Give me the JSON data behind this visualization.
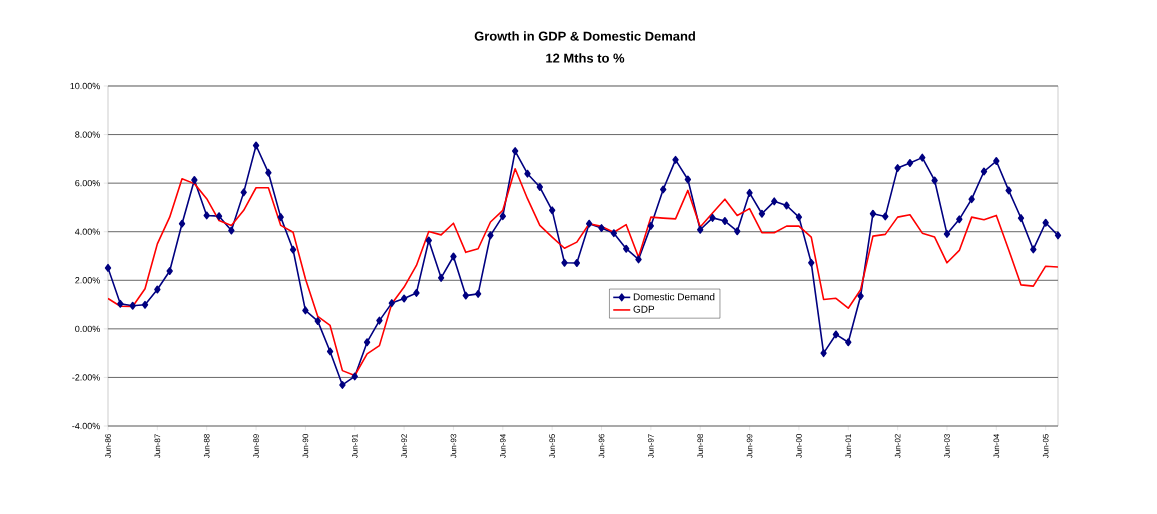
{
  "chart_data": {
    "type": "line",
    "title": "Growth in GDP & Domestic Demand",
    "subtitle": "12 Mths to %",
    "categories": [
      "Jun-86",
      null,
      null,
      null,
      "Jun-87",
      null,
      null,
      null,
      "Jun-88",
      null,
      null,
      null,
      "Jun-89",
      null,
      null,
      null,
      "Jun-90",
      null,
      null,
      null,
      "Jun-91",
      null,
      null,
      null,
      "Jun-92",
      null,
      null,
      null,
      "Jun-93",
      null,
      null,
      null,
      "Jun-94",
      null,
      null,
      null,
      "Jun-95",
      null,
      null,
      null,
      "Jun-96",
      null,
      null,
      null,
      "Jun-97",
      null,
      null,
      null,
      "Jun-98",
      null,
      null,
      null,
      "Jun-99",
      null,
      null,
      null,
      "Jun-00",
      null,
      null,
      null,
      "Jun-01",
      null,
      null,
      null,
      "Jun-02",
      null,
      null,
      null,
      "Jun-03",
      null,
      null,
      null,
      "Jun-04",
      null,
      null,
      null,
      "Jun-05",
      null
    ],
    "series": [
      {
        "name": "Domestic Demand",
        "color": "#000080",
        "marker": "diamond",
        "values": [
          2.51,
          1.03,
          0.95,
          0.99,
          1.62,
          2.38,
          4.33,
          6.13,
          4.67,
          4.64,
          4.05,
          5.62,
          7.55,
          6.43,
          4.6,
          3.26,
          0.76,
          0.32,
          -0.93,
          -2.31,
          -1.96,
          -0.55,
          0.34,
          1.06,
          1.25,
          1.48,
          3.64,
          2.1,
          2.98,
          1.37,
          1.44,
          3.85,
          4.64,
          7.32,
          6.39,
          5.84,
          4.88,
          2.72,
          2.71,
          4.33,
          4.15,
          3.94,
          3.3,
          2.86,
          4.24,
          5.74,
          6.96,
          6.15,
          4.08,
          4.57,
          4.44,
          4.02,
          5.6,
          4.74,
          5.25,
          5.08,
          4.6,
          2.72,
          -1.0,
          -0.23,
          -0.55,
          1.35,
          4.74,
          4.63,
          6.62,
          6.83,
          7.05,
          6.11,
          3.91,
          4.51,
          5.34,
          6.48,
          6.91,
          5.7,
          4.56,
          3.27,
          4.37,
          3.85
        ]
      },
      {
        "name": "GDP",
        "color": "#ff0000",
        "marker": "none",
        "values": [
          1.25,
          0.93,
          0.92,
          1.65,
          3.5,
          4.6,
          6.18,
          5.98,
          5.36,
          4.46,
          4.26,
          4.88,
          5.81,
          5.81,
          4.26,
          3.98,
          2.06,
          0.51,
          0.14,
          -1.72,
          -1.92,
          -1.03,
          -0.69,
          1.03,
          1.72,
          2.61,
          4.01,
          3.87,
          4.35,
          3.15,
          3.3,
          4.4,
          4.88,
          6.59,
          5.36,
          4.26,
          3.78,
          3.32,
          3.57,
          4.33,
          4.22,
          3.98,
          4.29,
          2.95,
          4.6,
          4.56,
          4.53,
          5.7,
          4.19,
          4.77,
          5.34,
          4.67,
          4.95,
          3.96,
          3.96,
          4.23,
          4.23,
          3.78,
          1.21,
          1.26,
          0.85,
          1.61,
          3.82,
          3.89,
          4.6,
          4.7,
          3.94,
          3.78,
          2.72,
          3.23,
          4.6,
          4.49,
          4.67,
          3.26,
          1.81,
          1.76,
          2.58,
          2.55
        ]
      }
    ],
    "ylim": [
      -4,
      10
    ],
    "yticks": [
      {
        "value": -4,
        "label": "-4.00%"
      },
      {
        "value": -2,
        "label": "-2.00%"
      },
      {
        "value": 0,
        "label": "0.00%"
      },
      {
        "value": 2,
        "label": "2.00%"
      },
      {
        "value": 4,
        "label": "4.00%"
      },
      {
        "value": 6,
        "label": "6.00%"
      },
      {
        "value": 8,
        "label": "8.00%"
      },
      {
        "value": 10,
        "label": "10.00%"
      }
    ],
    "grid": "y",
    "legend": "center",
    "line_style": "solid"
  }
}
